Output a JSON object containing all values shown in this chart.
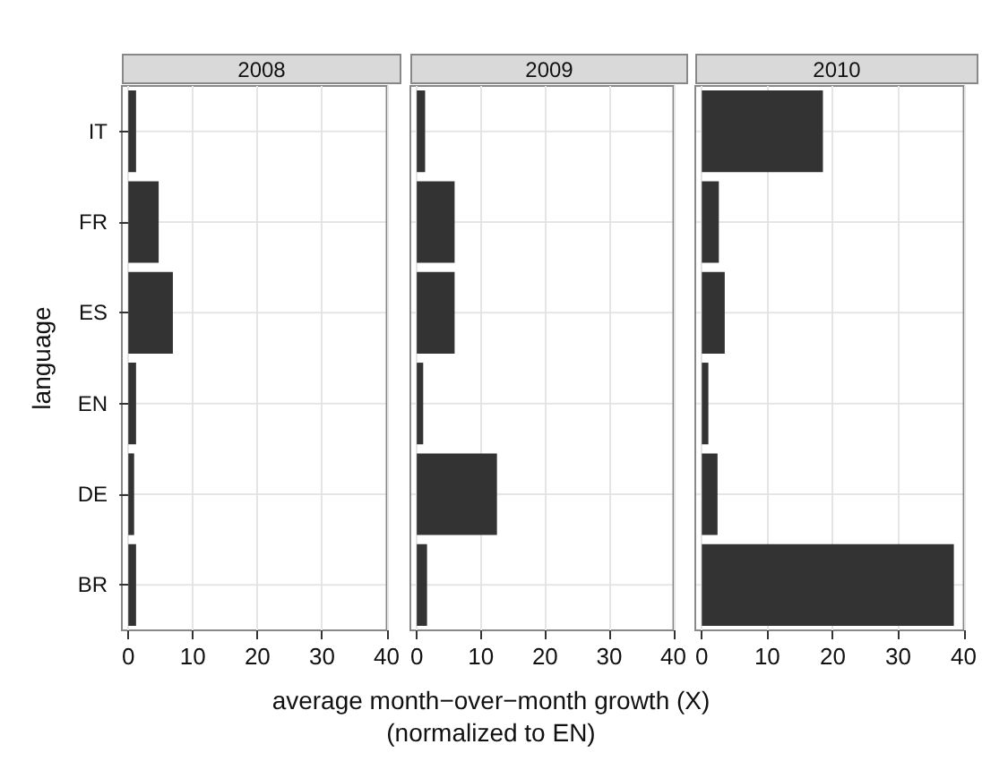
{
  "chart_data": [
    {
      "type": "bar",
      "orientation": "horizontal",
      "title": "2008",
      "ylabel": "language",
      "categories": [
        "IT",
        "FR",
        "ES",
        "EN",
        "DE",
        "BR"
      ],
      "series": [
        {
          "color": "#333333",
          "values": [
            1.2,
            4.7,
            6.9,
            1.2,
            0.9,
            1.2
          ]
        }
      ],
      "xlim": [
        -1,
        40
      ],
      "xticks": [
        0,
        10,
        20,
        30,
        40
      ],
      "grid": true
    },
    {
      "type": "bar",
      "orientation": "horizontal",
      "title": "2009",
      "xlabel": "average month−over−month growth (X)\n(normalized to EN)",
      "categories": [
        null,
        null,
        null,
        null,
        null,
        null
      ],
      "series": [
        {
          "color": "#333333",
          "values": [
            1.3,
            5.9,
            5.9,
            1.0,
            12.5,
            1.6
          ]
        }
      ],
      "xlim": [
        -1,
        40
      ],
      "xticks": [
        0,
        10,
        20,
        30,
        40
      ],
      "grid": true,
      "tick_labels": "x"
    },
    {
      "type": "bar",
      "orientation": "horizontal",
      "title": "2010",
      "categories": [
        null,
        null,
        null,
        null,
        null,
        null
      ],
      "series": [
        {
          "color": "#333333",
          "values": [
            18.5,
            2.6,
            3.5,
            1.0,
            2.4,
            38.5
          ]
        }
      ],
      "xlim": [
        -1,
        40
      ],
      "xticks": [
        0,
        10,
        20,
        30,
        40
      ],
      "grid": true,
      "tick_labels": "x"
    }
  ]
}
